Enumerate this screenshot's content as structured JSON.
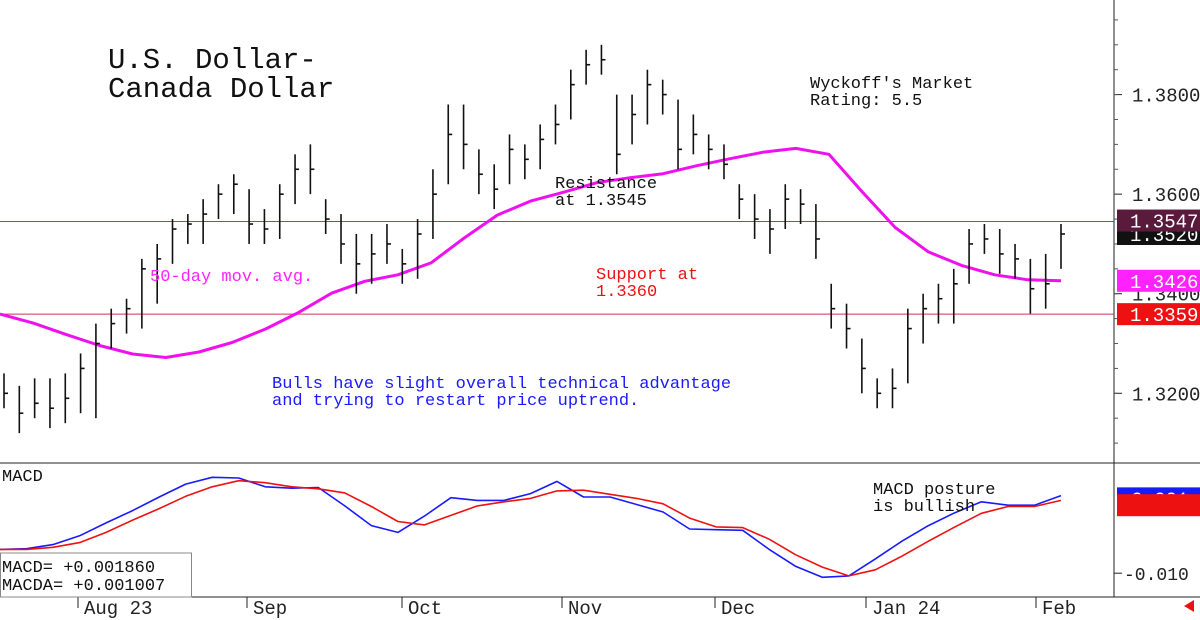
{
  "chart_data": [
    {
      "type": "ohlc",
      "title": "U.S. Dollar-\nCanada Dollar",
      "rating": "Wyckoff's Market\nRating: 5.5",
      "ylim": [
        1.306,
        1.399
      ],
      "y_ticks": [
        "1.3200",
        "1.3400",
        "1.3600",
        "1.3800"
      ],
      "x_labels": [
        "Aug 23",
        "Sep",
        "Oct",
        "Nov",
        "Dec",
        "Jan 24",
        "Feb"
      ],
      "price_tags": [
        {
          "label": "1.3520",
          "value": 1.352,
          "color": "#111111"
        },
        {
          "label": "1.3547",
          "value": 1.3547,
          "color": "#5a1a3c"
        },
        {
          "label": "1.3426",
          "value": 1.3426,
          "color": "#ff22ff"
        },
        {
          "label": "1.3359",
          "value": 1.3359,
          "color": "#ee1111"
        }
      ],
      "horizontal_lines": [
        {
          "value": 1.3545,
          "color": "#cc3355"
        },
        {
          "value": 1.3359,
          "color": "#cc3355"
        }
      ],
      "annotations": [
        {
          "text": "Resistance\nat 1.3545",
          "color": "#111111"
        },
        {
          "text": "50-day mov. avg.",
          "color": "#ff22ff"
        },
        {
          "text": "Support at\n1.3360",
          "color": "#ee1111"
        },
        {
          "text": "Bulls have slight overall technical advantage\nand trying to restart price uptrend.",
          "color": "#1a1aff"
        }
      ],
      "moving_average": {
        "name": "50-day mov. avg.",
        "color": "#ee11ee",
        "values": [
          1.3359,
          1.3341,
          1.3318,
          1.3296,
          1.3279,
          1.3272,
          1.3283,
          1.3302,
          1.3329,
          1.3362,
          1.3401,
          1.3425,
          1.3438,
          1.3462,
          1.3512,
          1.3558,
          1.3586,
          1.3604,
          1.3623,
          1.3633,
          1.3641,
          1.3657,
          1.3671,
          1.3684,
          1.3692,
          1.368,
          1.3605,
          1.3533,
          1.3484,
          1.3457,
          1.3438,
          1.3428,
          1.3426
        ]
      },
      "bars": [
        [
          1.324,
          1.317,
          1.32
        ],
        [
          1.3215,
          1.312,
          1.316
        ],
        [
          1.323,
          1.315,
          1.318
        ],
        [
          1.323,
          1.313,
          1.317
        ],
        [
          1.324,
          1.314,
          1.319
        ],
        [
          1.328,
          1.316,
          1.325
        ],
        [
          1.334,
          1.315,
          1.33
        ],
        [
          1.337,
          1.329,
          1.334
        ],
        [
          1.339,
          1.332,
          1.337
        ],
        [
          1.347,
          1.333,
          1.345
        ],
        [
          1.35,
          1.338,
          1.347
        ],
        [
          1.355,
          1.346,
          1.353
        ],
        [
          1.356,
          1.35,
          1.354
        ],
        [
          1.359,
          1.35,
          1.356
        ],
        [
          1.362,
          1.355,
          1.36
        ],
        [
          1.364,
          1.356,
          1.362
        ],
        [
          1.361,
          1.35,
          1.354
        ],
        [
          1.357,
          1.35,
          1.353
        ],
        [
          1.362,
          1.351,
          1.36
        ],
        [
          1.368,
          1.358,
          1.365
        ],
        [
          1.37,
          1.36,
          1.365
        ],
        [
          1.359,
          1.352,
          1.355
        ],
        [
          1.356,
          1.346,
          1.35
        ],
        [
          1.352,
          1.34,
          1.346
        ],
        [
          1.352,
          1.342,
          1.348
        ],
        [
          1.354,
          1.346,
          1.35
        ],
        [
          1.349,
          1.342,
          1.346
        ],
        [
          1.355,
          1.343,
          1.352
        ],
        [
          1.365,
          1.351,
          1.36
        ],
        [
          1.378,
          1.362,
          1.372
        ],
        [
          1.378,
          1.365,
          1.37
        ],
        [
          1.369,
          1.36,
          1.364
        ],
        [
          1.366,
          1.357,
          1.361
        ],
        [
          1.372,
          1.362,
          1.369
        ],
        [
          1.37,
          1.363,
          1.367
        ],
        [
          1.374,
          1.365,
          1.371
        ],
        [
          1.378,
          1.37,
          1.374
        ],
        [
          1.385,
          1.375,
          1.382
        ],
        [
          1.389,
          1.382,
          1.386
        ],
        [
          1.39,
          1.384,
          1.387
        ],
        [
          1.38,
          1.364,
          1.368
        ],
        [
          1.38,
          1.37,
          1.376
        ],
        [
          1.385,
          1.374,
          1.382
        ],
        [
          1.383,
          1.376,
          1.38
        ],
        [
          1.379,
          1.365,
          1.369
        ],
        [
          1.376,
          1.368,
          1.372
        ],
        [
          1.372,
          1.365,
          1.369
        ],
        [
          1.37,
          1.363,
          1.366
        ],
        [
          1.362,
          1.355,
          1.359
        ],
        [
          1.36,
          1.351,
          1.355
        ],
        [
          1.357,
          1.348,
          1.353
        ],
        [
          1.362,
          1.353,
          1.359
        ],
        [
          1.361,
          1.354,
          1.358
        ],
        [
          1.358,
          1.347,
          1.351
        ],
        [
          1.342,
          1.333,
          1.337
        ],
        [
          1.338,
          1.329,
          1.333
        ],
        [
          1.331,
          1.32,
          1.325
        ],
        [
          1.323,
          1.317,
          1.32
        ],
        [
          1.325,
          1.317,
          1.321
        ],
        [
          1.337,
          1.322,
          1.333
        ],
        [
          1.34,
          1.33,
          1.337
        ],
        [
          1.342,
          1.334,
          1.339
        ],
        [
          1.345,
          1.334,
          1.342
        ],
        [
          1.353,
          1.342,
          1.35
        ],
        [
          1.354,
          1.348,
          1.351
        ],
        [
          1.353,
          1.344,
          1.348
        ],
        [
          1.35,
          1.343,
          1.347
        ],
        [
          1.347,
          1.336,
          1.341
        ],
        [
          1.348,
          1.337,
          1.342
        ],
        [
          1.354,
          1.345,
          1.352
        ]
      ]
    },
    {
      "type": "line",
      "title": "MACD",
      "ylim": [
        -0.0135,
        0.0062
      ],
      "y_ticks": [
        "-0.010"
      ],
      "x_labels": [
        "Aug 23",
        "Sep",
        "Oct",
        "Nov",
        "Dec",
        "Jan 24",
        "Feb"
      ],
      "price_tags": [
        {
          "label": "+0.001",
          "value": 0.001,
          "color": "#1a1aff"
        },
        {
          "label": "",
          "value": 0.0,
          "color": "#ee1111"
        }
      ],
      "annotations": [
        {
          "text": "MACD posture\nis bullish",
          "color": "#111111"
        }
      ],
      "readouts": [
        "MACD=   +0.001860",
        "MACDA= +0.001007"
      ],
      "series": [
        {
          "color": "#1a1aff",
          "values": [
            -0.0065,
            -0.0064,
            -0.0058,
            -0.0045,
            -0.0026,
            -0.0008,
            0.0012,
            0.0031,
            0.0041,
            0.004,
            0.0027,
            0.0025,
            0.0026,
            -0.0001,
            -0.003,
            -0.004,
            -0.0016,
            0.0011,
            0.0007,
            0.0007,
            0.0017,
            0.0035,
            0.0012,
            0.0012,
            0.0001,
            -0.001,
            -0.0035,
            -0.0036,
            -0.0037,
            -0.0065,
            -0.009,
            -0.0106,
            -0.0104,
            -0.0079,
            -0.0053,
            -0.003,
            -0.0011,
            0.0005,
            0.0,
            0.0,
            0.0014
          ]
        },
        {
          "color": "#ee1111",
          "values": [
            -0.0065,
            -0.0065,
            -0.0062,
            -0.0055,
            -0.004,
            -0.0022,
            -0.0005,
            0.0013,
            0.0027,
            0.0036,
            0.0033,
            0.0027,
            0.0024,
            0.0018,
            -0.0002,
            -0.0024,
            -0.0029,
            -0.0015,
            -0.0001,
            0.0005,
            0.001,
            0.0021,
            0.0022,
            0.0016,
            0.001,
            0.0002,
            -0.0019,
            -0.0032,
            -0.0033,
            -0.005,
            -0.0073,
            -0.0091,
            -0.0104,
            -0.0095,
            -0.0075,
            -0.0053,
            -0.0032,
            -0.0012,
            -0.0002,
            -0.0002,
            0.0007
          ]
        }
      ]
    }
  ]
}
